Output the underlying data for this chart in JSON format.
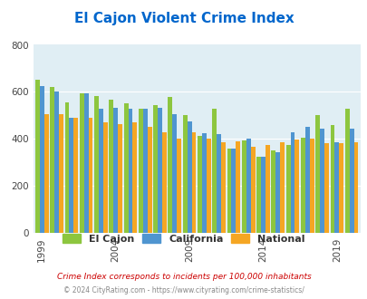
{
  "title": "El Cajon Violent Crime Index",
  "title_color": "#0066cc",
  "years": [
    1999,
    2000,
    2001,
    2002,
    2003,
    2004,
    2005,
    2006,
    2007,
    2008,
    2009,
    2010,
    2011,
    2012,
    2013,
    2014,
    2015,
    2016,
    2017,
    2018,
    2019,
    2020
  ],
  "el_cajon": [
    650,
    620,
    555,
    595,
    583,
    568,
    550,
    530,
    545,
    577,
    500,
    415,
    530,
    360,
    395,
    325,
    350,
    375,
    405,
    500,
    460,
    530
  ],
  "california": [
    625,
    600,
    490,
    595,
    530,
    533,
    527,
    530,
    533,
    505,
    473,
    425,
    420,
    360,
    400,
    325,
    345,
    430,
    450,
    445,
    385,
    445
  ],
  "national": [
    505,
    505,
    490,
    490,
    470,
    463,
    470,
    450,
    430,
    403,
    430,
    400,
    385,
    390,
    368,
    375,
    388,
    398,
    400,
    383,
    383,
    388
  ],
  "el_cajon_color": "#8dc63f",
  "california_color": "#4f95d0",
  "national_color": "#f5a623",
  "bg_color": "#e0eef4",
  "yticks": [
    0,
    200,
    400,
    600,
    800
  ],
  "xticks": [
    1999,
    2004,
    2009,
    2014,
    2019
  ],
  "ylabel_note": "Crime Index corresponds to incidents per 100,000 inhabitants",
  "footer": "© 2024 CityRating.com - https://www.cityrating.com/crime-statistics/"
}
